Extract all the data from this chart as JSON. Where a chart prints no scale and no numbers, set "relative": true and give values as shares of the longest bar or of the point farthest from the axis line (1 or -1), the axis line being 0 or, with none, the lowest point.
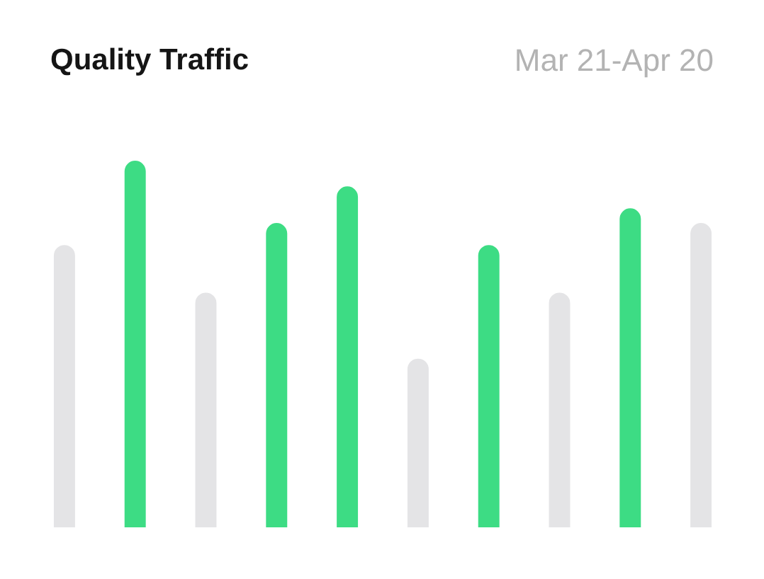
{
  "chart_data": {
    "type": "bar",
    "title": "Quality Traffic",
    "subtitle": "Mar 21-Apr 20",
    "categories": [
      null,
      null,
      null,
      null,
      null,
      null,
      null,
      null,
      null,
      null
    ],
    "values": [
      0.77,
      1,
      0.64,
      0.83,
      0.93,
      0.46,
      0.77,
      0.64,
      0.87,
      0.83
    ],
    "colors": [
      "#e4e4e6",
      "#3ddc84",
      "#e4e4e6",
      "#3ddc84",
      "#3ddc84",
      "#e4e4e6",
      "#3ddc84",
      "#e4e4e6",
      "#3ddc84",
      "#e4e4e6"
    ],
    "relative": true
  }
}
